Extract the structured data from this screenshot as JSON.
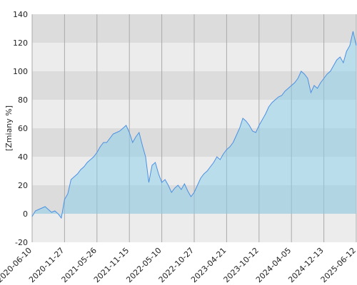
{
  "chart_data": {
    "type": "area",
    "ylabel": "[Zmiany %]",
    "categories": [
      "2020-06-10",
      null,
      null,
      null,
      null,
      null,
      null,
      null,
      null,
      null,
      "2020-11-27",
      null,
      null,
      null,
      null,
      null,
      null,
      null,
      null,
      null,
      "2021-05-26",
      null,
      null,
      null,
      null,
      null,
      null,
      null,
      null,
      null,
      "2021-11-15",
      null,
      null,
      null,
      null,
      null,
      null,
      null,
      null,
      null,
      "2022-05-10",
      null,
      null,
      null,
      null,
      null,
      null,
      null,
      null,
      null,
      "2022-10-27",
      null,
      null,
      null,
      null,
      null,
      null,
      null,
      null,
      null,
      "2023-04-21",
      null,
      null,
      null,
      null,
      null,
      null,
      null,
      null,
      null,
      "2023-10-12",
      null,
      null,
      null,
      null,
      null,
      null,
      null,
      null,
      null,
      "2024-04-05",
      null,
      null,
      null,
      null,
      null,
      null,
      null,
      null,
      null,
      "2024-12-13",
      null,
      null,
      null,
      null,
      null,
      null,
      null,
      null,
      null,
      "2025-06-12"
    ],
    "values": [
      -2,
      2,
      3,
      4,
      5,
      3,
      1,
      2,
      0,
      -3,
      10,
      14,
      24,
      26,
      28,
      31,
      33,
      36,
      38,
      40,
      43,
      47,
      50,
      50,
      53,
      56,
      57,
      58,
      60,
      62,
      57,
      50,
      54,
      57,
      48,
      40,
      22,
      34,
      36,
      28,
      22,
      24,
      20,
      15,
      18,
      20,
      17,
      21,
      16,
      12,
      15,
      20,
      25,
      28,
      30,
      33,
      36,
      40,
      38,
      42,
      45,
      47,
      50,
      55,
      60,
      67,
      65,
      62,
      58,
      57,
      62,
      66,
      70,
      75,
      78,
      80,
      82,
      83,
      86,
      88,
      90,
      92,
      95,
      100,
      98,
      95,
      85,
      90,
      88,
      92,
      95,
      98,
      100,
      104,
      108,
      110,
      106,
      114,
      118,
      128,
      118
    ],
    "color": "#4a90e2",
    "ylim": [
      -20,
      140
    ],
    "yticks": [
      -20,
      0,
      20,
      40,
      60,
      80,
      100,
      120,
      140
    ],
    "grid": true
  }
}
